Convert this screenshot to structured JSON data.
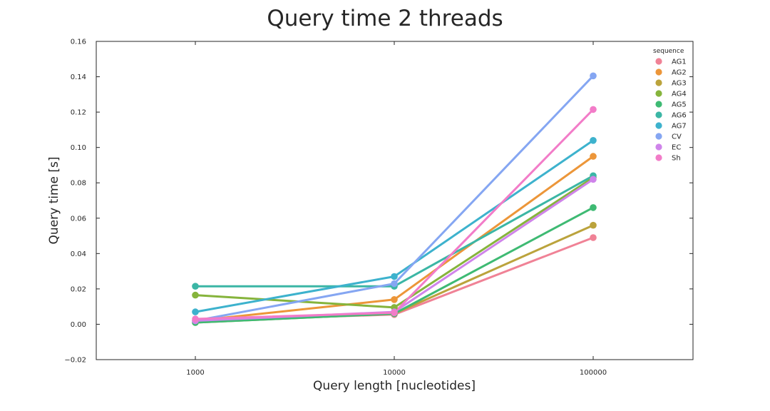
{
  "chart_data": {
    "type": "line",
    "title": "Query time 2 threads",
    "xlabel": "Query length [nucleotides]",
    "ylabel": "Query time [s]",
    "categories": [
      "1000",
      "10000",
      "100000"
    ],
    "ylim": [
      -0.02,
      0.16
    ],
    "yticks": [
      "−0.02",
      "0.00",
      "0.02",
      "0.04",
      "0.06",
      "0.08",
      "0.10",
      "0.12",
      "0.14",
      "0.16"
    ],
    "ytick_values": [
      -0.02,
      0.0,
      0.02,
      0.04,
      0.06,
      0.08,
      0.1,
      0.12,
      0.14,
      0.16
    ],
    "grid": false,
    "legend": {
      "title": "sequence",
      "position": "top-right"
    },
    "series": [
      {
        "name": "AG1",
        "color": "#f08296",
        "values": [
          0.002,
          0.0055,
          0.049
        ]
      },
      {
        "name": "AG2",
        "color": "#ec9639",
        "values": [
          0.002,
          0.014,
          0.095
        ]
      },
      {
        "name": "AG3",
        "color": "#bba33c",
        "values": [
          0.001,
          0.006,
          0.056
        ]
      },
      {
        "name": "AG4",
        "color": "#86b43c",
        "values": [
          0.0165,
          0.0095,
          0.083
        ]
      },
      {
        "name": "AG5",
        "color": "#3eba73",
        "values": [
          0.001,
          0.006,
          0.066
        ]
      },
      {
        "name": "AG6",
        "color": "#3bb6a5",
        "values": [
          0.0215,
          0.0215,
          0.084
        ]
      },
      {
        "name": "AG7",
        "color": "#3db2cd",
        "values": [
          0.007,
          0.027,
          0.104
        ]
      },
      {
        "name": "CV",
        "color": "#85a6f2",
        "values": [
          0.002,
          0.023,
          0.1405
        ]
      },
      {
        "name": "EC",
        "color": "#cf84ea",
        "values": [
          0.002,
          0.007,
          0.082
        ]
      },
      {
        "name": "Sh",
        "color": "#f27cc8",
        "values": [
          0.003,
          0.0065,
          0.1215
        ]
      }
    ]
  }
}
